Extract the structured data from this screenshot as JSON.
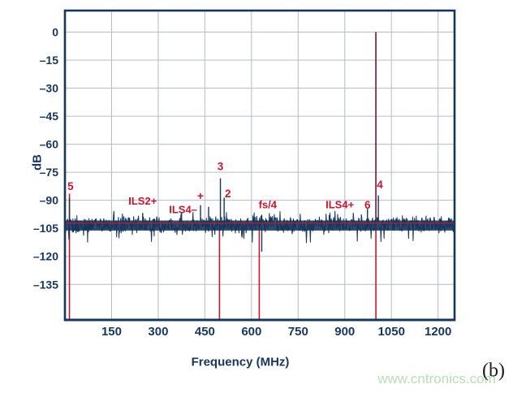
{
  "figure_label": "(b)",
  "watermark": "www.cntronics.com",
  "chart_data": {
    "type": "line",
    "subtype": "fft-spectrum",
    "title": "",
    "xlabel": "Frequency (MHz)",
    "ylabel": "dB",
    "xlim": [
      0,
      1253
    ],
    "ylim": [
      -154,
      11.5
    ],
    "grid": true,
    "x_ticks": [
      150,
      300,
      450,
      600,
      750,
      900,
      1050,
      1200
    ],
    "x_tick_labels": [
      "150",
      "300",
      "450",
      "600",
      "750",
      "900",
      "1050",
      "1200"
    ],
    "y_ticks": [
      0,
      -15,
      -30,
      -45,
      -60,
      -75,
      -90,
      -105,
      -120,
      -135
    ],
    "y_tick_labels": [
      "0",
      "–15",
      "–30",
      "–45",
      "–60",
      "–75",
      "–90",
      "–105",
      "–120",
      "–135"
    ],
    "noise_floor": {
      "mean_db": -103,
      "band_db": [
        -100.8,
        -106.2
      ],
      "upper_spike_db": -95,
      "lower_spike_db": -113,
      "avg_line_db": -102.2
    },
    "fundamental": {
      "f": 1000,
      "db": 0
    },
    "peaks": [
      {
        "f": 14.5,
        "db": -88.8,
        "label": "5"
      },
      {
        "f": 250,
        "db": -96.8,
        "label": ""
      },
      {
        "f": 375,
        "db": -96.2,
        "label": ""
      },
      {
        "f": 436,
        "db": -92.6,
        "label": "+"
      },
      {
        "f": 462,
        "db": -93.5,
        "label": ""
      },
      {
        "f": 500,
        "db": -78.2,
        "label": "3"
      },
      {
        "f": 512,
        "db": -88.6,
        "label": "2"
      },
      {
        "f": 633,
        "db": -117.5,
        "label": ""
      },
      {
        "f": 973,
        "db": -94.6,
        "label": "6"
      },
      {
        "f": 1008,
        "db": -87.4,
        "label": "4"
      }
    ],
    "marker_lines": [
      {
        "f": 14.5,
        "top_db": -86.5
      },
      {
        "f": 497,
        "top_db": -101
      },
      {
        "f": 625,
        "top_db": -101
      },
      {
        "f": 1000,
        "top_db": -101
      }
    ],
    "annotations": [
      {
        "text": "5",
        "f": 18,
        "db": -82.5,
        "size": 13.5
      },
      {
        "text": "ILS2+",
        "f": 250,
        "db": -90.3,
        "size": 13
      },
      {
        "text": "ILS4–",
        "f": 380,
        "db": -95.0,
        "size": 13
      },
      {
        "text": "+",
        "f": 436,
        "db": -87.6,
        "size": 14
      },
      {
        "text": "3",
        "f": 500,
        "db": -71.8,
        "size": 13.5
      },
      {
        "text": "2",
        "f": 524,
        "db": -86.4,
        "size": 13.5
      },
      {
        "text": "fs/4",
        "f": 652,
        "db": -92.4,
        "size": 13
      },
      {
        "text": "ILS4+",
        "f": 884,
        "db": -92.4,
        "size": 13
      },
      {
        "text": "6",
        "f": 973,
        "db": -92.4,
        "size": 13.5
      },
      {
        "text": "4",
        "f": 1013,
        "db": -81.6,
        "size": 13.5
      }
    ],
    "colors": {
      "navy": "#17365D",
      "grid": "#b4bcca",
      "accent_red": "#C9152F",
      "avg_line_red": "#B01E30",
      "fundamental_maroon": "#7A3150",
      "watermark_green": "#abd9ab"
    }
  }
}
